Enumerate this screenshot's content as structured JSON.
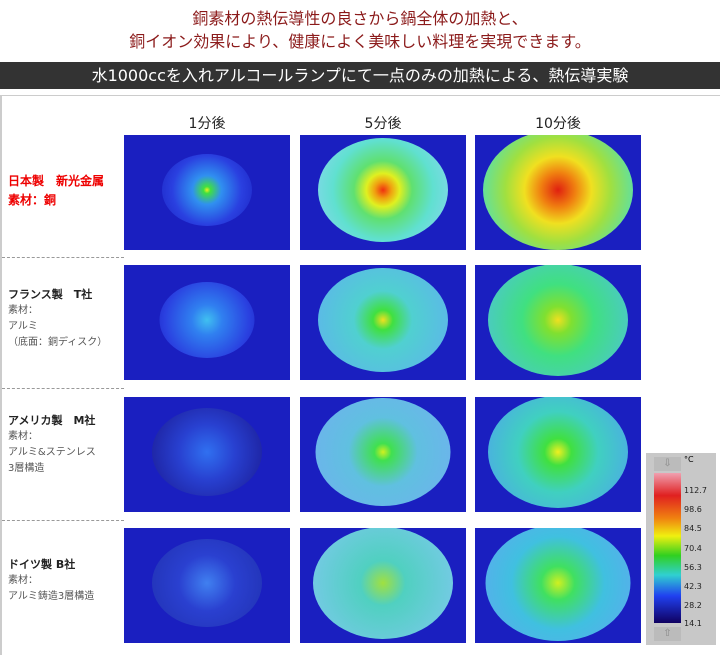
{
  "heading": {
    "line1": "銅素材の熱伝導性の良さから鍋全体の加熱と、",
    "line2": "銅イオン効果により、健康によく美味しい料理を実現できます。"
  },
  "band_title": "水1000ccを入れアルコールランプにて一点のみの加熱による、熱伝導実験",
  "columns": [
    "1分後",
    "5分後",
    "10分後"
  ],
  "rows": [
    {
      "title": "日本製　新光金属",
      "lines": [
        "素材：銅"
      ],
      "highlight": true
    },
    {
      "title": "フランス製　T社",
      "lines": [
        "素材：",
        "アルミ",
        "（底面：銅ディスク）"
      ]
    },
    {
      "title": "アメリカ製　M社",
      "lines": [
        "素材：",
        "アルミ&ステンレス",
        "3層構造"
      ]
    },
    {
      "title": "ドイツ製 B社",
      "lines": [
        "素材：",
        "アルミ鋳造3層構造"
      ]
    }
  ],
  "legend": {
    "unit": "°C",
    "ticks": [
      "112.7",
      "98.6",
      "84.5",
      "70.4",
      "56.3",
      "42.3",
      "28.2",
      "14.1"
    ],
    "up_icon": "arrow-up-icon",
    "down_icon": "arrow-down-icon"
  }
}
